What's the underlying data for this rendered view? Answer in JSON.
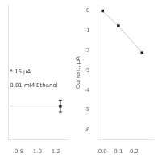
{
  "chart_data": [
    {
      "type": "line",
      "xlim": [
        0.68,
        1.33
      ],
      "xticks": [
        0.8,
        {
          "value": 1.0,
          "label": "1.0"
        },
        1.2
      ],
      "ylim": [
        -7.5,
        0.5
      ],
      "tick_labels": "x",
      "grid": false,
      "annotations": [
        "*.16 μA",
        "0.01 mM Ethanol"
      ],
      "series": [
        {
          "type": "line",
          "color": "#c8c8c8",
          "x": [
            0.7,
            1.25
          ],
          "values": [
            -5.5,
            -5.5
          ]
        },
        {
          "type": "scatter",
          "color": "#222222",
          "marker": "square",
          "x": [
            1.25
          ],
          "values": [
            -5.5
          ],
          "yerr": [
            0.35
          ]
        }
      ]
    },
    {
      "type": "line",
      "ylabel": "Current, μA",
      "xlim": [
        -0.03,
        0.32
      ],
      "xticks": [
        {
          "value": 0.0,
          "label": "0.0"
        },
        0.1,
        0.2
      ],
      "ylim": [
        -6.5,
        0.3
      ],
      "yticks": [
        -6,
        -5,
        -4,
        -3,
        -2,
        -1,
        0
      ],
      "grid": false,
      "series": [
        {
          "type": "line",
          "color": "#c8c8c8",
          "x": [
            0.0,
            0.1,
            0.25
          ],
          "values": [
            0.0,
            -0.75,
            -2.1
          ]
        },
        {
          "type": "scatter",
          "color": "#222222",
          "marker": "square",
          "x": [
            0.0,
            0.1,
            0.25
          ],
          "values": [
            0.0,
            -0.75,
            -2.1
          ]
        }
      ]
    }
  ]
}
